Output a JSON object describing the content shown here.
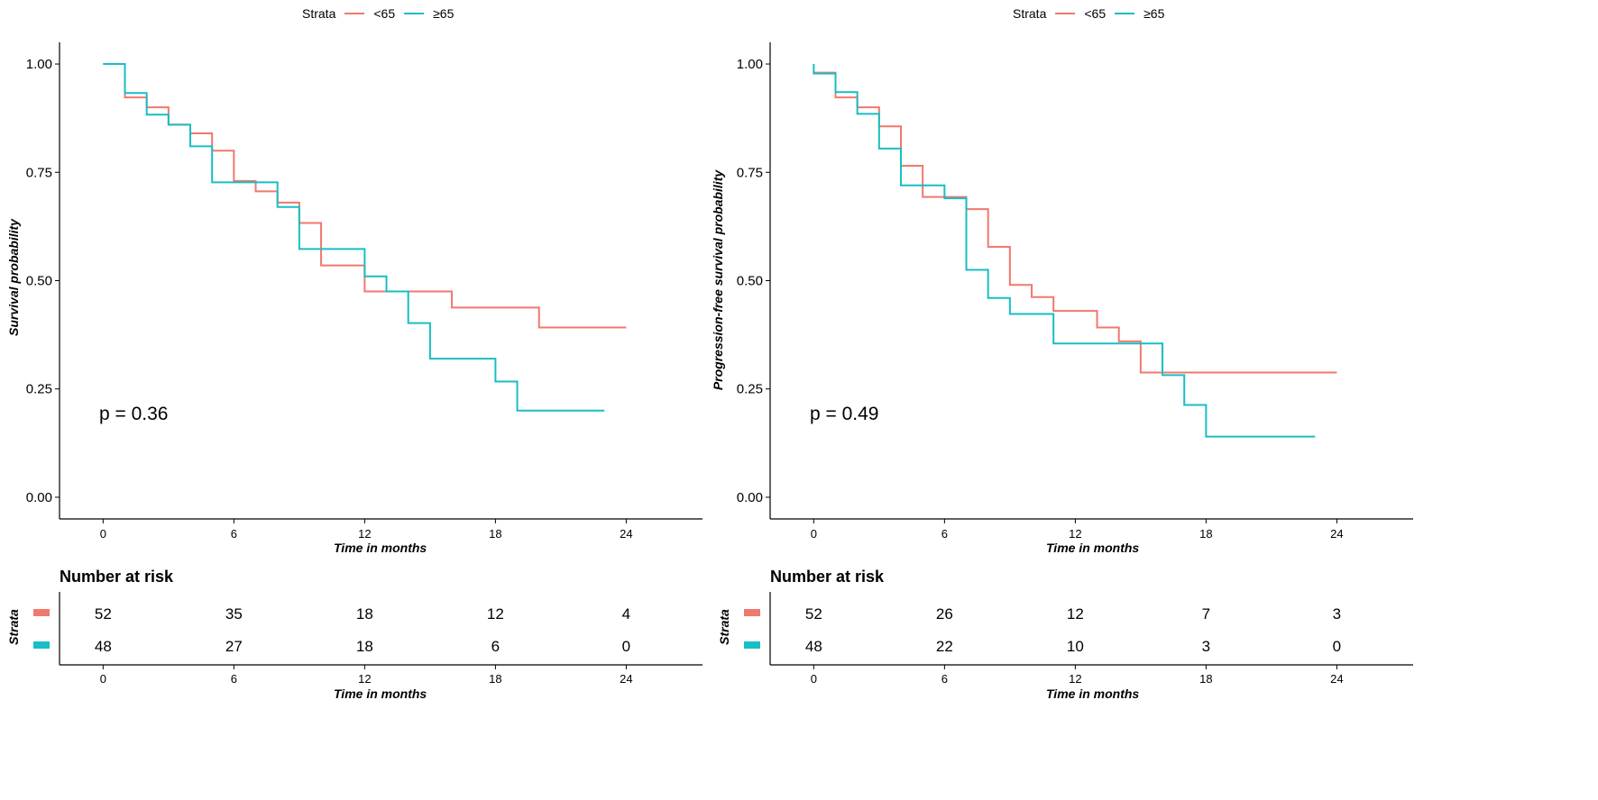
{
  "colors": {
    "lt65": "#F1786E",
    "ge65": "#17BEC5",
    "axis": "#000000"
  },
  "legend": {
    "title": "Strata",
    "labels": [
      "<65",
      "≥65"
    ]
  },
  "chart_data": [
    {
      "type": "line",
      "subtype": "kaplan-meier step",
      "ylabel": "Survival probability",
      "xlabel": "Time in months",
      "xlim": [
        -2,
        27.5
      ],
      "ylim": [
        -0.05,
        1.05
      ],
      "xticks": [
        "0",
        "6",
        "12",
        "18",
        "24"
      ],
      "yticks": [
        "0.00",
        "0.25",
        "0.50",
        "0.75",
        "1.00"
      ],
      "pvalue": "p = 0.36",
      "series": [
        {
          "name": "<65",
          "color": "#F1786E",
          "steps": [
            [
              0,
              1.0
            ],
            [
              1,
              0.923
            ],
            [
              2,
              0.9
            ],
            [
              3,
              0.86
            ],
            [
              4,
              0.84
            ],
            [
              5,
              0.8
            ],
            [
              6,
              0.73
            ],
            [
              7,
              0.706
            ],
            [
              8,
              0.68
            ],
            [
              9,
              0.633
            ],
            [
              10,
              0.535
            ],
            [
              12,
              0.475
            ],
            [
              16,
              0.438
            ],
            [
              20,
              0.392
            ],
            [
              24,
              0.392
            ]
          ]
        },
        {
          "name": "≥65",
          "color": "#17BEC5",
          "steps": [
            [
              0,
              1.0
            ],
            [
              1,
              0.933
            ],
            [
              2,
              0.883
            ],
            [
              3,
              0.86
            ],
            [
              4,
              0.81
            ],
            [
              5,
              0.727
            ],
            [
              8,
              0.67
            ],
            [
              9,
              0.573
            ],
            [
              12,
              0.51
            ],
            [
              13,
              0.475
            ],
            [
              14,
              0.402
            ],
            [
              15,
              0.32
            ],
            [
              18,
              0.267
            ],
            [
              19,
              0.2
            ],
            [
              23,
              0.2
            ]
          ]
        }
      ],
      "risk_table": {
        "title": "Number at risk",
        "ylabel": "Strata",
        "xlabel": "Time in months",
        "times": [
          "0",
          "6",
          "12",
          "18",
          "24"
        ],
        "rows": [
          {
            "name": "<65",
            "values": [
              "52",
              "35",
              "18",
              "12",
              "4"
            ]
          },
          {
            "name": "≥65",
            "values": [
              "48",
              "27",
              "18",
              "6",
              "0"
            ]
          }
        ]
      }
    },
    {
      "type": "line",
      "subtype": "kaplan-meier step",
      "ylabel": "Progression-free survival probability",
      "xlabel": "Time in months",
      "xlim": [
        -2,
        27.5
      ],
      "ylim": [
        -0.05,
        1.05
      ],
      "xticks": [
        "0",
        "6",
        "12",
        "18",
        "24"
      ],
      "yticks": [
        "0.00",
        "0.25",
        "0.50",
        "0.75",
        "1.00"
      ],
      "pvalue": "p = 0.49",
      "series": [
        {
          "name": "<65",
          "color": "#F1786E",
          "steps": [
            [
              0,
              0.98
            ],
            [
              1,
              0.923
            ],
            [
              2,
              0.9
            ],
            [
              3,
              0.856
            ],
            [
              4,
              0.765
            ],
            [
              5,
              0.693
            ],
            [
              7,
              0.665
            ],
            [
              8,
              0.578
            ],
            [
              9,
              0.49
            ],
            [
              10,
              0.462
            ],
            [
              11,
              0.43
            ],
            [
              13,
              0.392
            ],
            [
              14,
              0.36
            ],
            [
              15,
              0.288
            ],
            [
              24,
              0.288
            ]
          ]
        },
        {
          "name": "≥65",
          "color": "#17BEC5",
          "steps": [
            [
              0,
              1.0
            ],
            [
              0,
              0.978
            ],
            [
              1,
              0.935
            ],
            [
              2,
              0.885
            ],
            [
              3,
              0.805
            ],
            [
              4,
              0.72
            ],
            [
              6,
              0.69
            ],
            [
              7,
              0.525
            ],
            [
              8,
              0.46
            ],
            [
              9,
              0.423
            ],
            [
              11,
              0.355
            ],
            [
              16,
              0.282
            ],
            [
              17,
              0.213
            ],
            [
              18,
              0.14
            ],
            [
              23,
              0.14
            ]
          ]
        }
      ],
      "risk_table": {
        "title": "Number at risk",
        "ylabel": "Strata",
        "xlabel": "Time in months",
        "times": [
          "0",
          "6",
          "12",
          "18",
          "24"
        ],
        "rows": [
          {
            "name": "<65",
            "values": [
              "52",
              "26",
              "12",
              "7",
              "3"
            ]
          },
          {
            "name": "≥65",
            "values": [
              "48",
              "22",
              "10",
              "3",
              "0"
            ]
          }
        ]
      }
    }
  ]
}
